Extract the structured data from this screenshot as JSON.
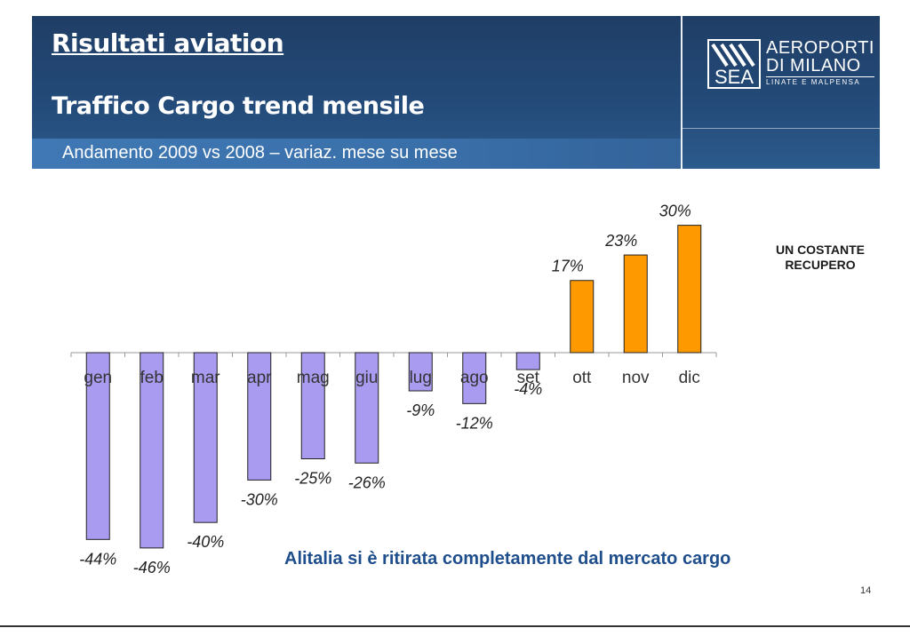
{
  "header": {
    "title": "Risultati aviation",
    "subtitle": "Traffico Cargo trend mensile",
    "band_text": "Andamento 2009 vs 2008 – variaz. mese su mese",
    "logo": {
      "mark": "SEA",
      "line1": "AEROPORTI",
      "line2": "DI MILANO",
      "line3": "LINATE E MALPENSA"
    }
  },
  "side_note": "UN COSTANTE RECUPERO",
  "bottom_note": "Alitalia si è ritirata completamente dal mercato cargo",
  "page_number": "14",
  "chart_data": {
    "type": "bar",
    "categories": [
      "gen",
      "feb",
      "mar",
      "apr",
      "mag",
      "giu",
      "lug",
      "ago",
      "set",
      "ott",
      "nov",
      "dic"
    ],
    "values": [
      -44,
      -46,
      -40,
      -30,
      -25,
      -26,
      -9,
      -12,
      -4,
      17,
      23,
      30
    ],
    "value_labels": [
      "-44%",
      "-46%",
      "-40%",
      "-30%",
      "-25%",
      "-26%",
      "-9%",
      "-12%",
      "-4%",
      "17%",
      "23%",
      "30%"
    ],
    "unit": "%",
    "colors": {
      "negative": "#a99cf0",
      "positive": "#ff9900",
      "outline": "#222222"
    },
    "grid": false,
    "legend": "none"
  }
}
